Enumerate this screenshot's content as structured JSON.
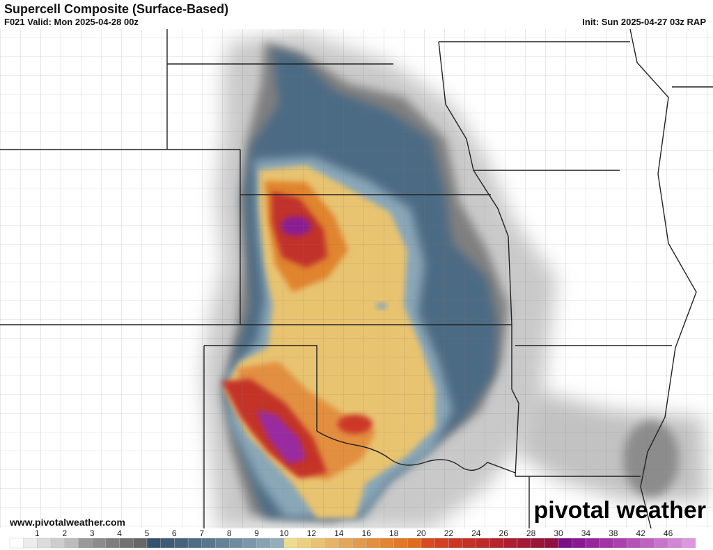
{
  "header": {
    "title": "Supercell Composite (Surface-Based)",
    "valid": "F021 Valid: Mon 2025-04-28 00z",
    "init": "Init: Sun 2025-04-27 03z RAP"
  },
  "footer": {
    "website": "www.pivotalweather.com",
    "logo_text": "pivotal weather"
  },
  "legend": {
    "tick_labels": [
      "1",
      "2",
      "3",
      "4",
      "5",
      "6",
      "7",
      "8",
      "9",
      "10",
      "12",
      "14",
      "16",
      "18",
      "20",
      "22",
      "24",
      "26",
      "28",
      "30",
      "34",
      "38",
      "42",
      "46"
    ],
    "tick_values": [
      1,
      2,
      3,
      4,
      5,
      6,
      7,
      8,
      9,
      10,
      12,
      14,
      16,
      18,
      20,
      22,
      24,
      26,
      28,
      30,
      34,
      38,
      42,
      46
    ],
    "bins": [
      0,
      0.5,
      1,
      1.5,
      2,
      2.5,
      3,
      3.5,
      4,
      4.5,
      5,
      5.5,
      6,
      6.5,
      7,
      7.5,
      8,
      8.5,
      9,
      9.5,
      10,
      11,
      12,
      13,
      14,
      15,
      16,
      17,
      18,
      19,
      20,
      21,
      22,
      23,
      24,
      25,
      26,
      27,
      28,
      29,
      30,
      32,
      34,
      36,
      38,
      40,
      42,
      44,
      46,
      48,
      50
    ],
    "colors": [
      "#ffffff",
      "#ececec",
      "#dcdcdc",
      "#cdcdcd",
      "#bdbdbd",
      "#9a9a9a",
      "#8c8c8c",
      "#7e7e7e",
      "#727272",
      "#666666",
      "#35536e",
      "#3d5b76",
      "#46637d",
      "#4f6c85",
      "#59768d",
      "#648196",
      "#6f8c9f",
      "#7b97a9",
      "#87a3b3",
      "#93aebd",
      "#ecdc8c",
      "#ead082",
      "#e8c275",
      "#e6b466",
      "#e4a658",
      "#e39a4c",
      "#e38f3f",
      "#e28434",
      "#e1792a",
      "#df6d20",
      "#d84a1f",
      "#d23f22",
      "#cc3725",
      "#c53027",
      "#be2a2a",
      "#b6242c",
      "#ad1f30",
      "#a41a34",
      "#9a1538",
      "#901140",
      "#7a0f88",
      "#8a1a94",
      "#96269c",
      "#a034a6",
      "#aa42ae",
      "#b452b8",
      "#be62c2",
      "#c874cc",
      "#d286d6",
      "#dc98de"
    ]
  },
  "map": {
    "field": "Supercell Composite Parameter",
    "model": "RAP"
  }
}
